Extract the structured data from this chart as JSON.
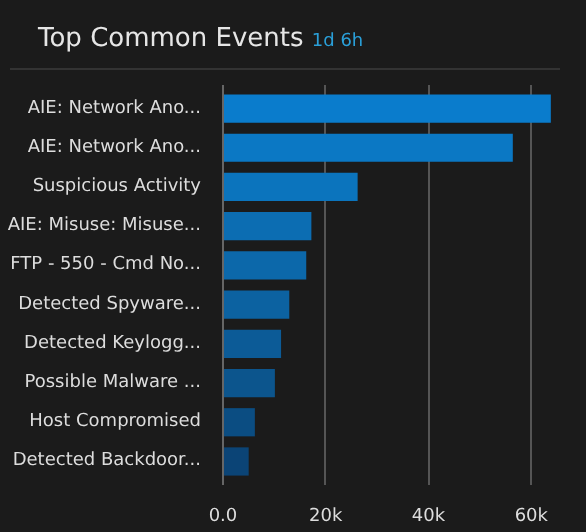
{
  "chart_data": {
    "type": "bar",
    "orientation": "horizontal",
    "title": "Top Common Events",
    "subtitle": "1d 6h",
    "categories": [
      "AIE: Network Ano...",
      "AIE: Network Ano...",
      "Suspicious Activity",
      "AIE: Misuse: Misuse...",
      "FTP - 550 - Cmd No...",
      "Detected Spyware...",
      "Detected Keylogg...",
      "Possible Malware ...",
      "Host Compromised",
      "Detected Backdoor..."
    ],
    "values": [
      63800,
      56400,
      26200,
      17200,
      16200,
      12900,
      11300,
      10100,
      6200,
      5000
    ],
    "colors": [
      "#0a7ccc",
      "#0b78c4",
      "#0b74bd",
      "#0c6db2",
      "#0c68aa",
      "#0c62a1",
      "#0c5b97",
      "#0c558d",
      "#0b4d82",
      "#0b4476"
    ],
    "xlim": [
      0,
      65000
    ],
    "xticks": [
      {
        "value": 0,
        "label": "0.0"
      },
      {
        "value": 20000,
        "label": "20k"
      },
      {
        "value": 40000,
        "label": "40k"
      },
      {
        "value": 60000,
        "label": "60k"
      }
    ],
    "grid": "x"
  }
}
